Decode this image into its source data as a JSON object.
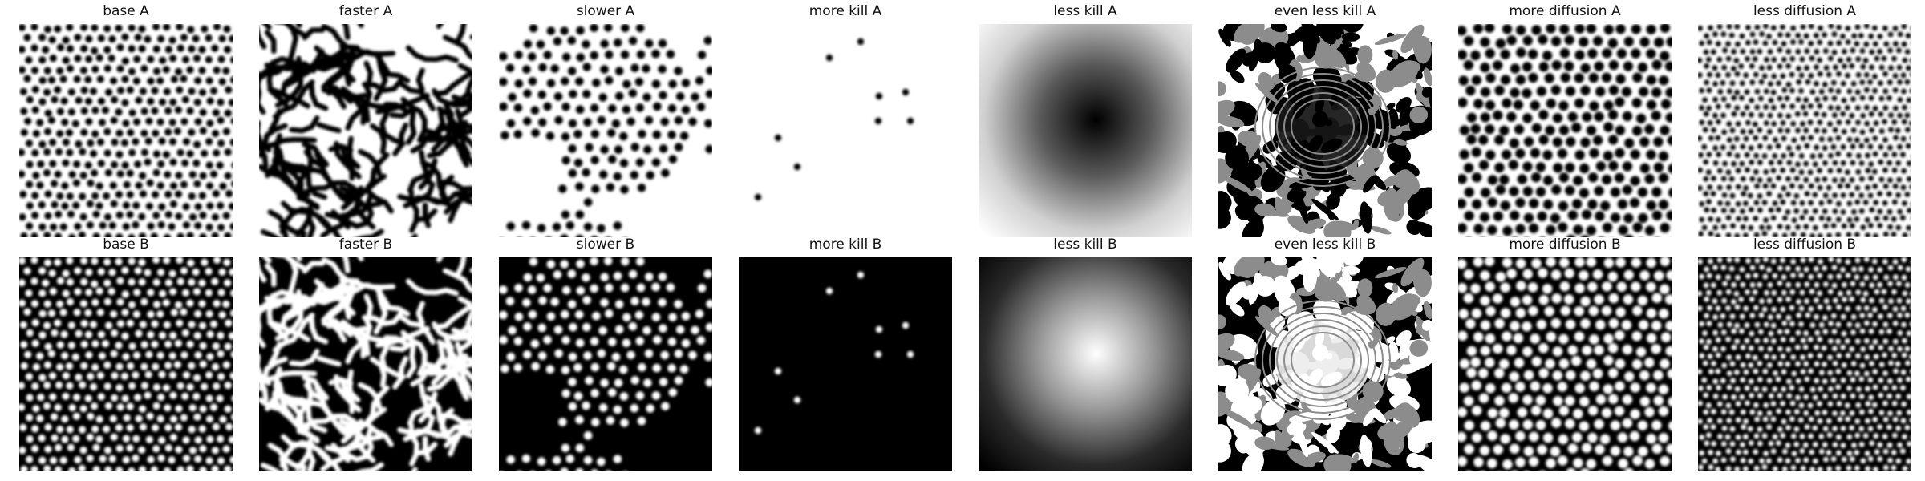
{
  "panels": [
    {
      "id": "base-a",
      "title": "base A",
      "pattern": "dots",
      "row": "A",
      "background": "#ffffff",
      "foreground": "#000000"
    },
    {
      "id": "faster-a",
      "title": "faster A",
      "pattern": "labyrinth",
      "row": "A",
      "background": "#ffffff",
      "foreground": "#000000"
    },
    {
      "id": "slower-a",
      "title": "slower A",
      "pattern": "dot-patches",
      "row": "A",
      "background": "#ffffff",
      "foreground": "#000000"
    },
    {
      "id": "more-kill-a",
      "title": "more kill A",
      "pattern": "sparse-spots",
      "row": "A",
      "background": "#ffffff",
      "foreground": "#000000"
    },
    {
      "id": "less-kill-a",
      "title": "less kill A",
      "pattern": "smooth-blob",
      "row": "A",
      "background": "#ffffff",
      "foreground": "#000000"
    },
    {
      "id": "even-less-kill-a",
      "title": "even less kill A",
      "pattern": "chaotic",
      "row": "A",
      "background": "#ffffff",
      "foreground": "#000000"
    },
    {
      "id": "more-diffusion-a",
      "title": "more diffusion A",
      "pattern": "large-dots",
      "row": "A",
      "background": "#ffffff",
      "foreground": "#000000"
    },
    {
      "id": "less-diffusion-a",
      "title": "less diffusion A",
      "pattern": "small-dots",
      "row": "A",
      "background": "#ffffff",
      "foreground": "#000000"
    },
    {
      "id": "base-b",
      "title": "base B",
      "pattern": "dots",
      "row": "B",
      "background": "#000000",
      "foreground": "#ffffff"
    },
    {
      "id": "faster-b",
      "title": "faster B",
      "pattern": "labyrinth",
      "row": "B",
      "background": "#000000",
      "foreground": "#ffffff"
    },
    {
      "id": "slower-b",
      "title": "slower B",
      "pattern": "dot-patches",
      "row": "B",
      "background": "#000000",
      "foreground": "#ffffff"
    },
    {
      "id": "more-kill-b",
      "title": "more kill B",
      "pattern": "sparse-spots",
      "row": "B",
      "background": "#000000",
      "foreground": "#ffffff"
    },
    {
      "id": "less-kill-b",
      "title": "less kill B",
      "pattern": "smooth-blob",
      "row": "B",
      "background": "#000000",
      "foreground": "#ffffff"
    },
    {
      "id": "even-less-kill-b",
      "title": "even less kill B",
      "pattern": "chaotic",
      "row": "B",
      "background": "#000000",
      "foreground": "#ffffff"
    },
    {
      "id": "more-diffusion-b",
      "title": "more diffusion B",
      "pattern": "large-dots",
      "row": "B",
      "background": "#000000",
      "foreground": "#ffffff"
    },
    {
      "id": "less-diffusion-b",
      "title": "less diffusion B",
      "pattern": "small-dots",
      "row": "B",
      "background": "#000000",
      "foreground": "#ffffff"
    }
  ]
}
